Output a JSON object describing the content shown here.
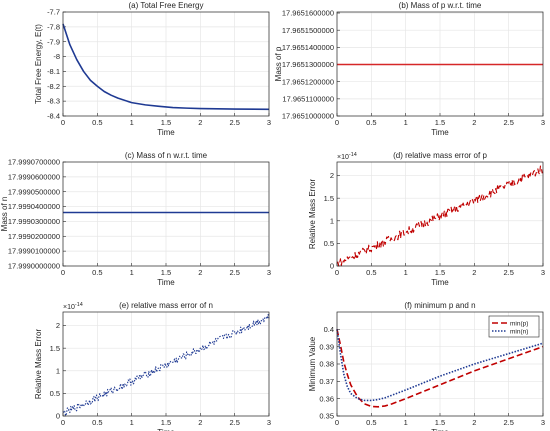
{
  "chart_data": [
    {
      "type": "line",
      "title": "(a) Total Free Energy",
      "xlabel": "Time",
      "ylabel": "Total Free Energy, E(t)",
      "xlim": [
        0,
        3
      ],
      "ylim": [
        -8.4,
        -7.7
      ],
      "xticks": [
        "0",
        "0.5",
        "1",
        "1.5",
        "2",
        "2.5",
        "3"
      ],
      "yticks": [
        "-8.4",
        "-8.3",
        "-8.2",
        "-8.1",
        "-8",
        "-7.9",
        "-7.8",
        "-7.7"
      ],
      "grid": true,
      "series": [
        {
          "color": "#1f3a93",
          "style": "solid",
          "x": [
            0,
            0.1,
            0.2,
            0.3,
            0.4,
            0.5,
            0.6,
            0.7,
            0.8,
            1.0,
            1.2,
            1.4,
            1.6,
            1.8,
            2.0,
            2.5,
            3.0
          ],
          "y": [
            -7.78,
            -7.92,
            -8.02,
            -8.1,
            -8.16,
            -8.2,
            -8.235,
            -8.26,
            -8.28,
            -8.31,
            -8.325,
            -8.335,
            -8.343,
            -8.347,
            -8.35,
            -8.353,
            -8.355
          ]
        }
      ]
    },
    {
      "type": "line",
      "title": "(b) Mass of p w.r.t. time",
      "xlabel": "Time",
      "ylabel": "Mass of p",
      "xlim": [
        0,
        3
      ],
      "ylim": [
        17.9651,
        17.9651606
      ],
      "xticks": [
        "0",
        "0.5",
        "1",
        "1.5",
        "2",
        "2.5",
        "3"
      ],
      "yticks": [
        "17.9651000000",
        "17.9651100000",
        "17.9651200000",
        "17.9651300000",
        "17.9651400000",
        "17.9651500000",
        "17.9651600000"
      ],
      "grid": true,
      "series": [
        {
          "color": "#d62728",
          "style": "solid",
          "x": [
            0,
            3
          ],
          "y": [
            17.96513,
            17.96513
          ]
        }
      ]
    },
    {
      "type": "line",
      "title": "(c) Mass of n w.r.t. time",
      "xlabel": "Time",
      "ylabel": "Mass of n",
      "xlim": [
        0,
        3
      ],
      "ylim": [
        17.999,
        17.99907
      ],
      "xticks": [
        "0",
        "0.5",
        "1",
        "1.5",
        "2",
        "2.5",
        "3"
      ],
      "yticks": [
        "17.9990000000",
        "17.9990100000",
        "17.9990200000",
        "17.9990300000",
        "17.9990400000",
        "17.9990500000",
        "17.9990600000",
        "17.9990700000"
      ],
      "grid": true,
      "series": [
        {
          "color": "#1f3a93",
          "style": "solid",
          "x": [
            0,
            3
          ],
          "y": [
            17.999036,
            17.999036
          ]
        }
      ]
    },
    {
      "type": "line",
      "title": "(d) relative mass error of p",
      "xlabel": "Time",
      "ylabel": "Relative Mass Error",
      "multiplier": "×10",
      "multiplier_exp": "-14",
      "xlim": [
        0,
        3
      ],
      "ylim": [
        0,
        2.3
      ],
      "xticks": [
        "0",
        "0.5",
        "1",
        "1.5",
        "2",
        "2.5",
        "3"
      ],
      "yticks": [
        "0",
        "0.5",
        "1",
        "1.5",
        "2"
      ],
      "grid": true,
      "noise": 0.09,
      "series": [
        {
          "color": "#c00000",
          "style": "dashed",
          "x": [
            0,
            3
          ],
          "y": [
            0.05,
            2.15
          ]
        }
      ]
    },
    {
      "type": "line",
      "title": "(e) relative mass error of n",
      "xlabel": "Time",
      "ylabel": "Relative Mass Error",
      "multiplier": "×10",
      "multiplier_exp": "-14",
      "xlim": [
        0,
        3
      ],
      "ylim": [
        0,
        2.3
      ],
      "xticks": [
        "0",
        "0.5",
        "1",
        "1.5",
        "2",
        "2.5",
        "3"
      ],
      "yticks": [
        "0",
        "0.5",
        "1",
        "1.5",
        "2"
      ],
      "grid": true,
      "noise": 0.08,
      "series": [
        {
          "color": "#1f3a93",
          "style": "dotted",
          "x": [
            0,
            3
          ],
          "y": [
            0.05,
            2.2
          ]
        }
      ]
    },
    {
      "type": "line",
      "title": "(f) minimum p and n",
      "xlabel": "Time",
      "ylabel": "Minimum Value",
      "xlim": [
        0,
        3
      ],
      "ylim": [
        0.35,
        0.41
      ],
      "xticks": [
        "0",
        "0.5",
        "1",
        "1.5",
        "2",
        "2.5",
        "3"
      ],
      "yticks": [
        "0.35",
        "0.36",
        "0.37",
        "0.38",
        "0.39",
        "0.4"
      ],
      "grid": true,
      "legend": "top-right",
      "series": [
        {
          "name": "min(p)",
          "color": "#c00000",
          "style": "dashed",
          "x": [
            0,
            0.05,
            0.1,
            0.15,
            0.2,
            0.3,
            0.4,
            0.5,
            0.6,
            0.7,
            0.8,
            1.0,
            1.5,
            2.0,
            2.5,
            3.0
          ],
          "y": [
            0.4,
            0.391,
            0.381,
            0.374,
            0.368,
            0.361,
            0.357,
            0.3555,
            0.3553,
            0.3558,
            0.357,
            0.36,
            0.368,
            0.376,
            0.383,
            0.39
          ]
        },
        {
          "name": "min(n)",
          "color": "#1f3a93",
          "style": "dotted",
          "x": [
            0,
            0.05,
            0.1,
            0.15,
            0.2,
            0.3,
            0.4,
            0.5,
            0.6,
            0.7,
            0.8,
            1.0,
            1.5,
            2.0,
            2.5,
            3.0
          ],
          "y": [
            0.4,
            0.386,
            0.374,
            0.367,
            0.363,
            0.36,
            0.359,
            0.359,
            0.3595,
            0.3605,
            0.362,
            0.365,
            0.373,
            0.38,
            0.386,
            0.392
          ]
        }
      ]
    }
  ]
}
